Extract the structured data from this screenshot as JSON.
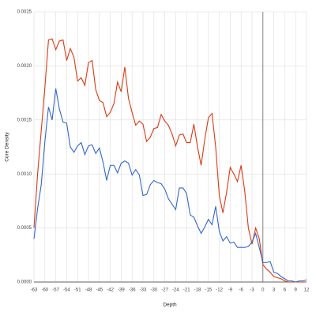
{
  "chart_data": {
    "type": "line",
    "x_label": "Depth",
    "y_label": "Core Density",
    "x": [
      -63,
      -62,
      -61,
      -60,
      -59,
      -58,
      -57,
      -56,
      -55,
      -54,
      -53,
      -52,
      -51,
      -50,
      -49,
      -48,
      -47,
      -46,
      -45,
      -44,
      -43,
      -42,
      -41,
      -40,
      -39,
      -38,
      -37,
      -36,
      -35,
      -34,
      -33,
      -32,
      -31,
      -30,
      -29,
      -28,
      -27,
      -26,
      -25,
      -24,
      -23,
      -22,
      -21,
      -20,
      -19,
      -18,
      -17,
      -16,
      -15,
      -14,
      -13,
      -12,
      -11,
      -10,
      -9,
      -8,
      -7,
      -6,
      -5,
      -4,
      -3,
      -2,
      -1,
      0,
      1,
      2,
      3,
      4,
      5,
      6,
      7,
      8,
      9,
      10,
      11,
      12
    ],
    "series": [
      {
        "color": "#dc3912",
        "values": [
          0.0005,
          0.001,
          0.0014,
          0.0018,
          0.00224,
          0.00225,
          0.00215,
          0.00223,
          0.00224,
          0.00205,
          0.00216,
          0.00208,
          0.00186,
          0.00189,
          0.00182,
          0.00203,
          0.00205,
          0.00178,
          0.00168,
          0.00166,
          0.00153,
          0.00157,
          0.00165,
          0.00185,
          0.00176,
          0.00199,
          0.0017,
          0.00157,
          0.00145,
          0.00149,
          0.00146,
          0.0013,
          0.00134,
          0.00142,
          0.00143,
          0.00155,
          0.00149,
          0.00145,
          0.00137,
          0.00126,
          0.00136,
          0.00137,
          0.00129,
          0.00129,
          0.00146,
          0.00125,
          0.00108,
          0.00132,
          0.00152,
          0.00156,
          0.00125,
          0.0008,
          0.00064,
          0.00083,
          0.00106,
          0.001,
          0.00093,
          0.00108,
          0.00084,
          0.0005,
          0.00035,
          0.0005,
          0.0004,
          0.00016,
          0.00012,
          9e-05,
          5e-05,
          4e-05,
          3e-05,
          1e-05,
          0,
          0,
          0,
          0,
          0,
          0
        ]
      },
      {
        "color": "#3366cc",
        "values": [
          0.0004,
          0.00068,
          0.0009,
          0.0013,
          0.00162,
          0.0015,
          0.00179,
          0.0016,
          0.00148,
          0.00147,
          0.00125,
          0.0012,
          0.00126,
          0.00129,
          0.00118,
          0.00126,
          0.00127,
          0.00119,
          0.00124,
          0.00111,
          0.00094,
          0.00108,
          0.00108,
          0.00101,
          0.0011,
          0.00112,
          0.0011,
          0.00099,
          0.00104,
          0.00099,
          0.0008,
          0.00081,
          0.0009,
          0.00094,
          0.00092,
          0.00091,
          0.00086,
          0.00077,
          0.00072,
          0.00067,
          0.00087,
          0.00087,
          0.00082,
          0.00062,
          0.0006,
          0.00052,
          0.00045,
          0.00051,
          0.00058,
          0.00053,
          0.0007,
          0.00047,
          0.00038,
          0.00042,
          0.00036,
          0.00037,
          0.00032,
          0.00032,
          0.00032,
          0.00033,
          0.00037,
          0.00045,
          0.00032,
          0.00018,
          0.00018,
          0.00019,
          9e-05,
          8e-05,
          5e-05,
          3e-05,
          1e-05,
          1e-05,
          0,
          1e-05,
          1e-05,
          2e-05
        ]
      }
    ],
    "xlim": [
      -63,
      12
    ],
    "xticks": [
      -63,
      -60,
      -57,
      -54,
      -51,
      -48,
      -45,
      -42,
      -39,
      -36,
      -33,
      -30,
      -27,
      -24,
      -21,
      -18,
      -15,
      -12,
      -9,
      -6,
      -3,
      0,
      3,
      6,
      9,
      12
    ],
    "ylim": [
      0,
      0.0025
    ],
    "yticks": [
      {
        "value": 0,
        "label": "0.0000"
      },
      {
        "value": 0.0005,
        "label": "0.0005"
      },
      {
        "value": 0.001,
        "label": "0.0010"
      },
      {
        "value": 0.0015,
        "label": "0.0015"
      },
      {
        "value": 0.002,
        "label": "0.0020"
      },
      {
        "value": 0.0025,
        "label": "0.0025"
      }
    ],
    "grid": true,
    "reference_line_x": 0
  }
}
